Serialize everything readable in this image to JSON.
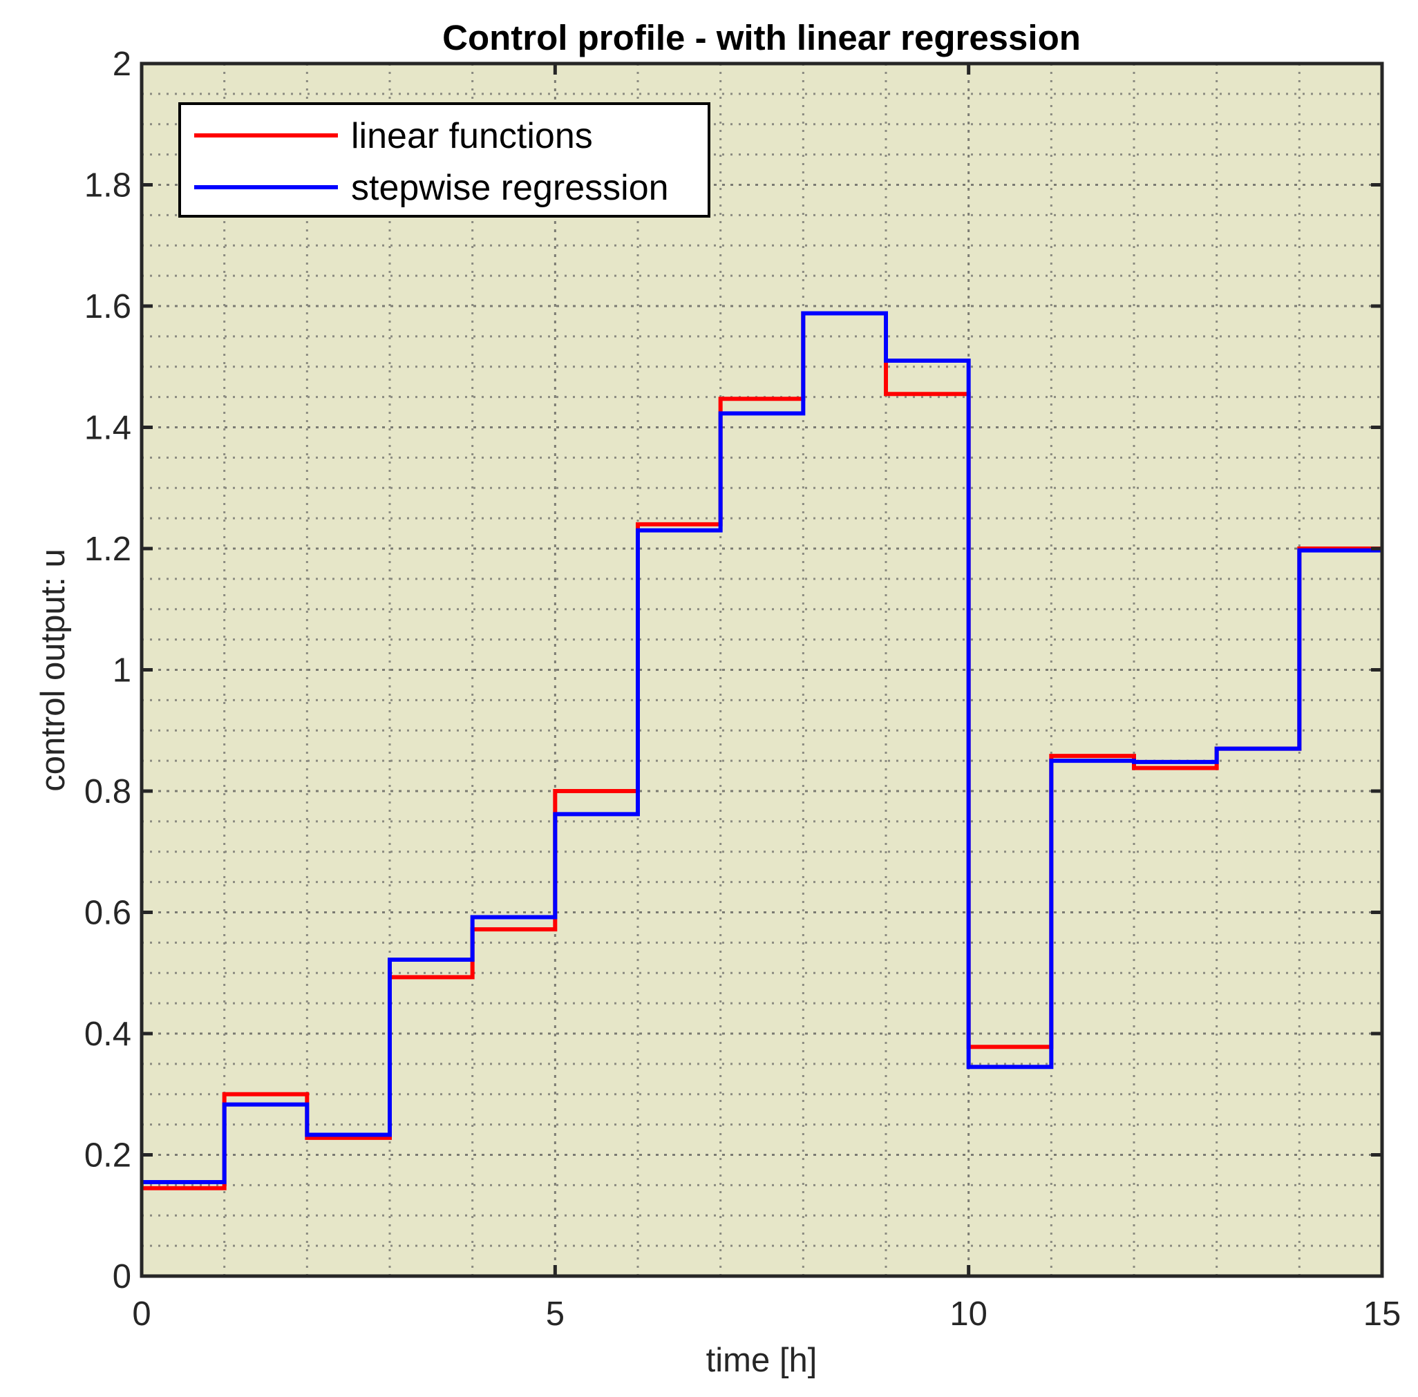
{
  "chart_data": {
    "type": "line",
    "title": "Control profile - with linear regression",
    "xlabel": "time [h]",
    "ylabel": "control output: u",
    "xlim": [
      0,
      15
    ],
    "ylim": [
      0,
      2
    ],
    "xticks": [
      0,
      5,
      10,
      15
    ],
    "yticks": [
      0,
      0.2,
      0.4,
      0.6,
      0.8,
      1,
      1.2,
      1.4,
      1.6,
      1.8,
      2
    ],
    "xtick_labels": [
      "0",
      "5",
      "10",
      "15"
    ],
    "ytick_labels": [
      "0",
      "0.2",
      "0.4",
      "0.6",
      "0.8",
      "1",
      "1.2",
      "1.4",
      "1.6",
      "1.8",
      "2"
    ],
    "grid": true,
    "minor_grid": true,
    "legend_position": "top-left",
    "plot_background": "#e6e6c8",
    "step": "post",
    "series": [
      {
        "name": "linear functions",
        "color": "#ff0000",
        "x": [
          0,
          1,
          2,
          3,
          4,
          5,
          6,
          7,
          8,
          9,
          10,
          11,
          12,
          13,
          14,
          15
        ],
        "y": [
          0.145,
          0.3,
          0.228,
          0.493,
          0.572,
          0.8,
          1.24,
          1.447,
          1.588,
          1.455,
          0.378,
          0.858,
          0.838,
          0.87,
          1.2,
          1.2
        ]
      },
      {
        "name": "stepwise regression",
        "color": "#0000ff",
        "x": [
          0,
          1,
          2,
          3,
          4,
          5,
          6,
          7,
          8,
          9,
          10,
          11,
          12,
          13,
          14,
          15
        ],
        "y": [
          0.155,
          0.283,
          0.233,
          0.522,
          0.592,
          0.762,
          1.23,
          1.423,
          1.588,
          1.51,
          0.345,
          0.85,
          0.848,
          0.87,
          1.197,
          1.197
        ]
      }
    ]
  }
}
